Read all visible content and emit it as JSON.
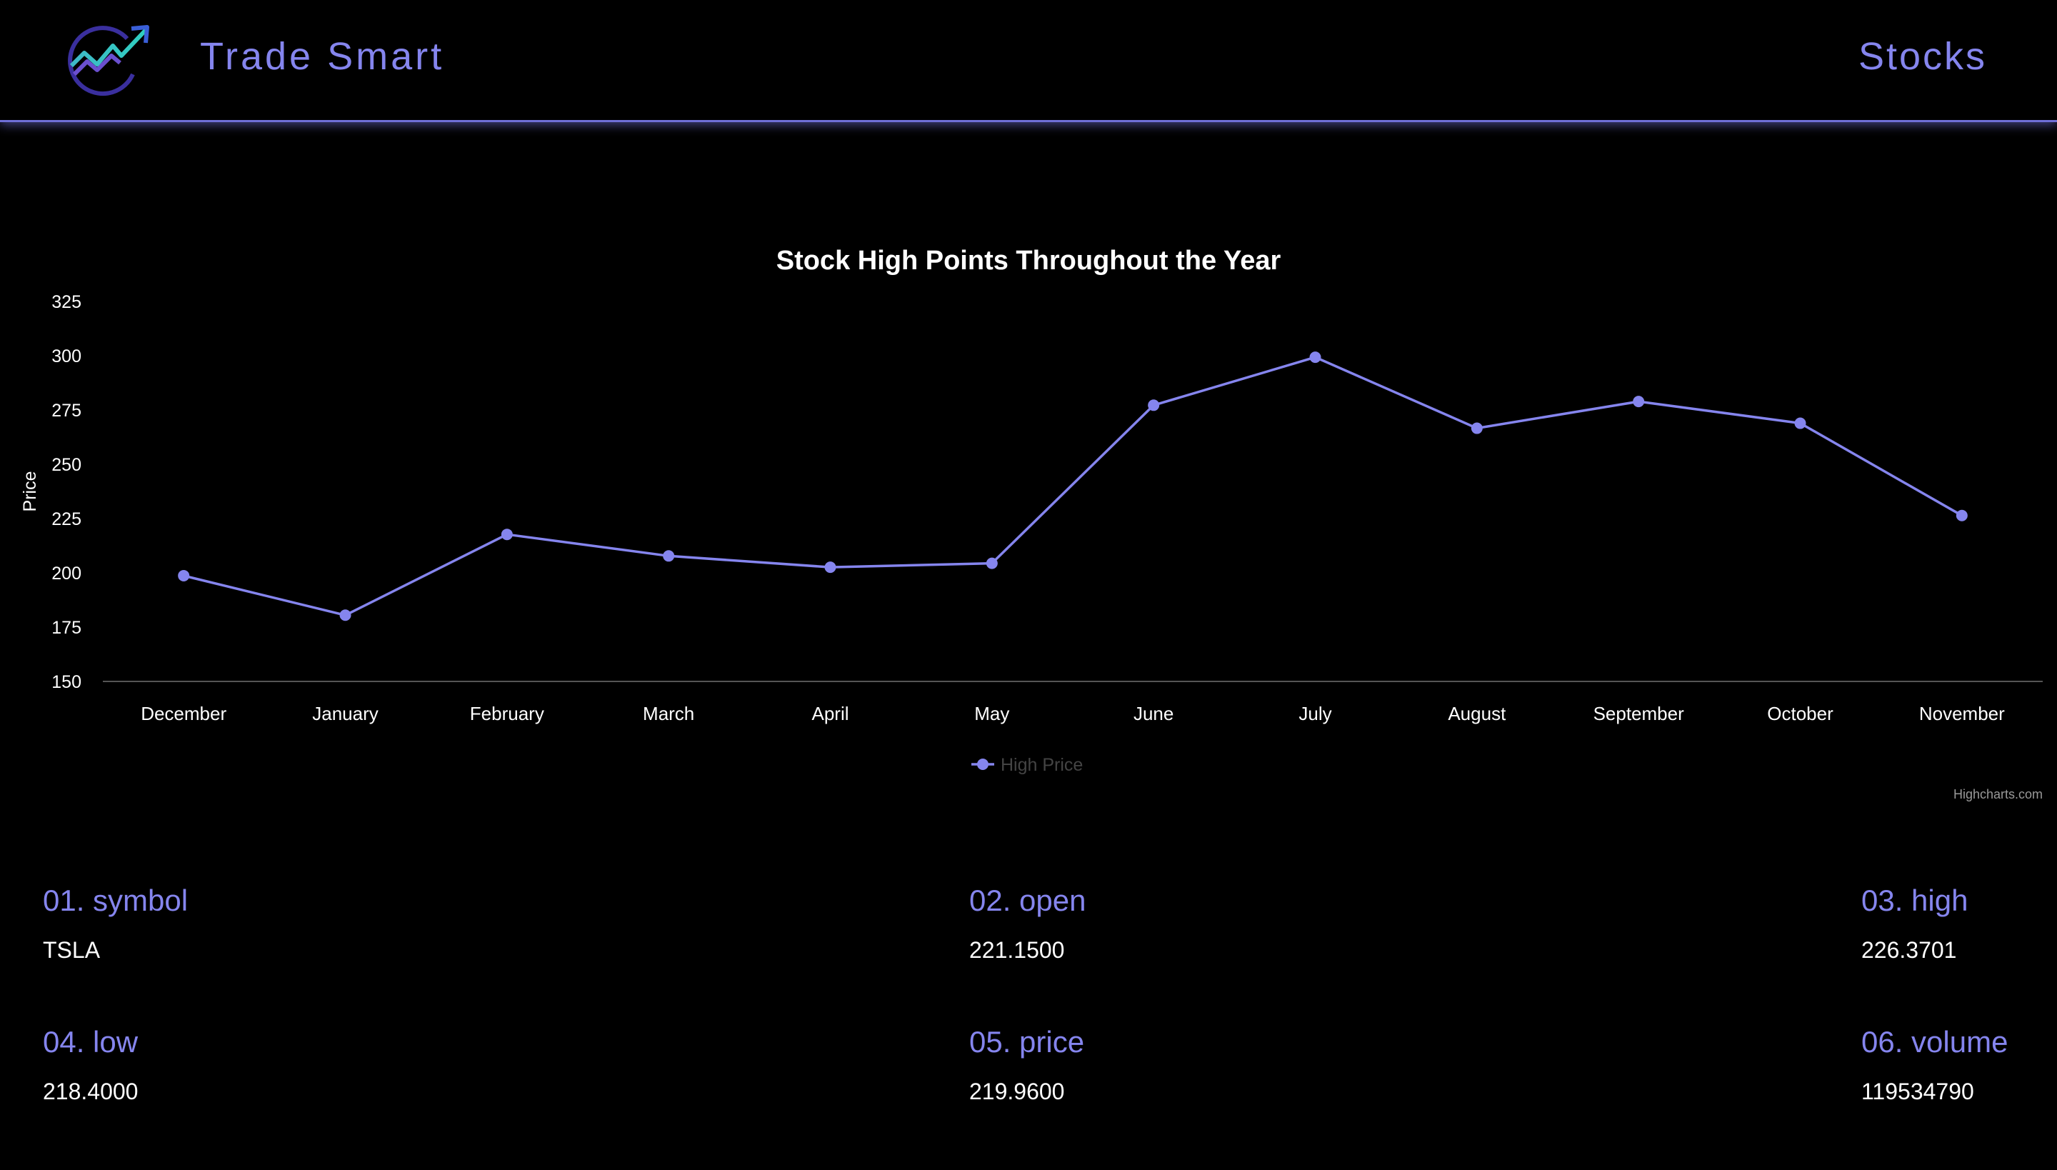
{
  "header": {
    "brand": "Trade Smart",
    "nav_stocks": "Stocks",
    "logo_icon": "trend-chart-logo-icon"
  },
  "colors": {
    "accent": "#8585ee",
    "line": "#8585ee",
    "background": "#000000",
    "text": "#ffffff"
  },
  "chart_data": {
    "type": "line",
    "title": "Stock High Points Throughout the Year",
    "ylabel": "Price",
    "xlabel": "",
    "categories": [
      "December",
      "January",
      "February",
      "March",
      "April",
      "May",
      "June",
      "July",
      "August",
      "September",
      "October",
      "November"
    ],
    "series": [
      {
        "name": "High Price",
        "values": [
          198.7,
          180.5,
          217.7,
          207.8,
          202.6,
          204.4,
          277.2,
          299.3,
          266.6,
          278.9,
          268.9,
          226.4
        ]
      }
    ],
    "ylim": [
      150,
      325
    ],
    "yticks": [
      "150",
      "175",
      "200",
      "225",
      "250",
      "275",
      "300",
      "325"
    ],
    "grid": false,
    "legend_position": "bottom-center",
    "credits": "Highcharts.com"
  },
  "stats": [
    {
      "label": "01. symbol",
      "value": "TSLA"
    },
    {
      "label": "02. open",
      "value": "221.1500"
    },
    {
      "label": "03. high",
      "value": "226.3701"
    },
    {
      "label": "04. low",
      "value": "218.4000"
    },
    {
      "label": "05. price",
      "value": "219.9600"
    },
    {
      "label": "06. volume",
      "value": "119534790"
    }
  ]
}
